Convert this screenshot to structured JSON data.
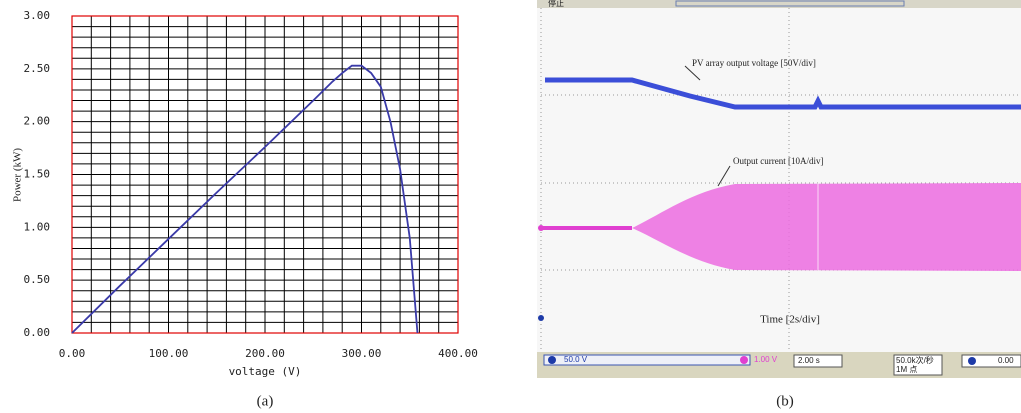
{
  "chart_data": {
    "type": "line",
    "x": [
      0,
      50,
      100,
      150,
      200,
      250,
      270,
      280,
      290,
      300,
      310,
      320,
      330,
      340,
      350,
      358
    ],
    "values": [
      0,
      0.45,
      0.89,
      1.33,
      1.76,
      2.2,
      2.38,
      2.46,
      2.53,
      2.53,
      2.46,
      2.33,
      2.0,
      1.55,
      0.9,
      0
    ],
    "color": "#3a3aa8",
    "x_label": "voltage (V)",
    "y_label": "Power (kW)",
    "xlim": [
      0,
      400
    ],
    "xticks": [
      {
        "value": 0,
        "label": "0.00"
      },
      {
        "value": 100,
        "label": "100.00"
      },
      {
        "value": 200,
        "label": "200.00"
      },
      {
        "value": 300,
        "label": "300.00"
      },
      {
        "value": 400,
        "label": "400.00"
      }
    ],
    "ylim": [
      0,
      3
    ],
    "yticks": [
      {
        "value": 0,
        "label": "0.00"
      },
      {
        "value": 0.5,
        "label": "0.50"
      },
      {
        "value": 1,
        "label": "1.00"
      },
      {
        "value": 1.5,
        "label": "1.50"
      },
      {
        "value": 2,
        "label": "2.00"
      },
      {
        "value": 2.5,
        "label": "2.50"
      },
      {
        "value": 3,
        "label": "3.00"
      }
    ],
    "grid": true
  },
  "scope": {
    "status": "停止",
    "voltage_label": "PV array output voltage [50V/div]",
    "current_label": "Output current [10A/div]",
    "time_label": "Time [2s/div]",
    "ch1": "50.0 V",
    "ch2": "1.00 V",
    "timebase": "2.00 s",
    "rate": "50.0k次/秒",
    "points": "1M 点",
    "trigger": "0.00"
  },
  "captions": [
    "(a)",
    "(b)"
  ]
}
